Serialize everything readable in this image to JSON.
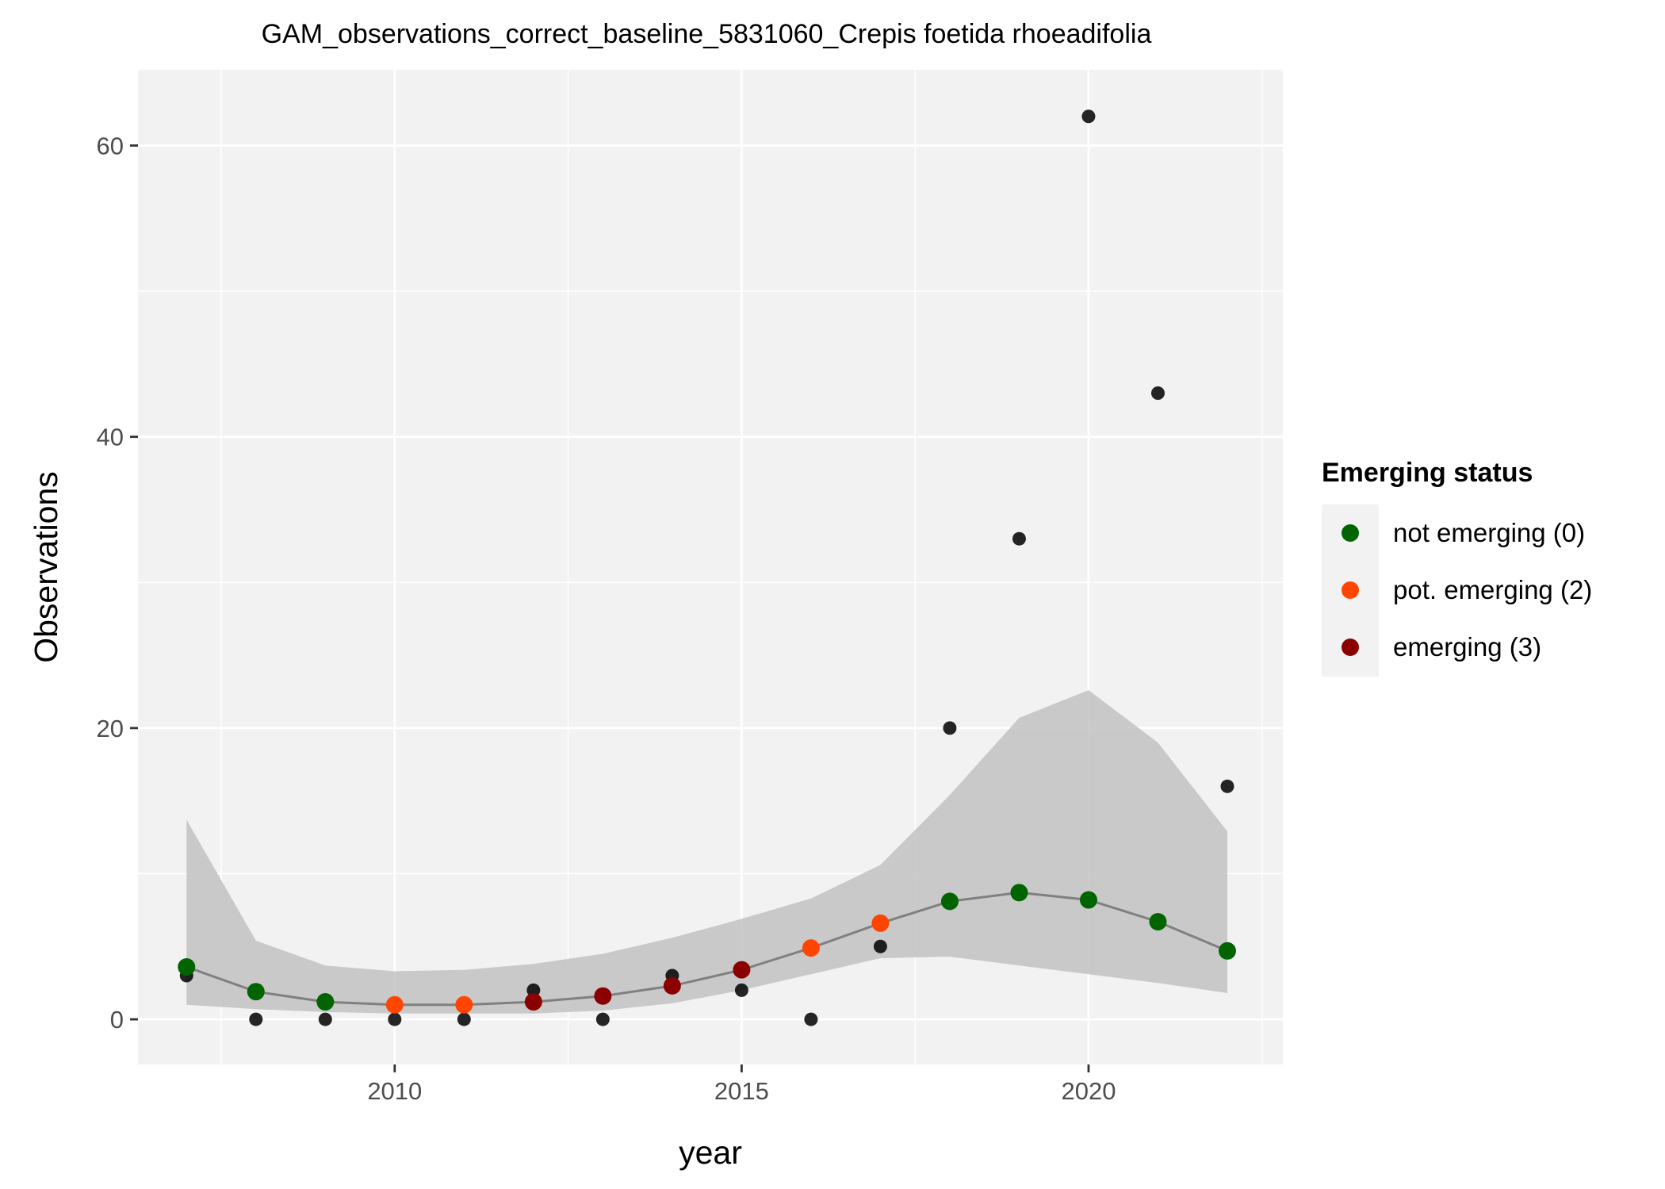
{
  "chart_data": {
    "type": "scatter",
    "title": "GAM_observations_correct_baseline_5831060_Crepis foetida rhoeadifolia",
    "xlabel": "year",
    "ylabel": "Observations",
    "xlim": [
      2006.3,
      2022.8
    ],
    "ylim": [
      -3.1,
      65.2
    ],
    "x_ticks": [
      2010,
      2015,
      2020
    ],
    "y_ticks": [
      0,
      20,
      40,
      60
    ],
    "x_tick_labels": [
      "2010",
      "2015",
      "2020"
    ],
    "y_tick_labels": [
      "0",
      "20",
      "40",
      "60"
    ],
    "grid": true,
    "legend_position": "right",
    "legend": {
      "title": "Emerging status",
      "entries": [
        {
          "label": "not emerging (0)",
          "color": "#006400"
        },
        {
          "label": "pot. emerging (2)",
          "color": "#FF4500"
        },
        {
          "label": "emerging (3)",
          "color": "#8B0000"
        }
      ]
    },
    "colors": {
      "panel": "#f2f2f2",
      "grid": "#ffffff",
      "ribbon": "#bebebe",
      "fit_line": "#808080",
      "observed": "#000000"
    },
    "observed": {
      "x": [
        2007,
        2008,
        2009,
        2010,
        2011,
        2012,
        2013,
        2014,
        2015,
        2016,
        2017,
        2018,
        2019,
        2020,
        2021,
        2022
      ],
      "y": [
        3,
        0,
        0,
        0,
        0,
        2,
        0,
        3,
        2,
        0,
        5,
        20,
        33,
        62,
        43,
        16
      ]
    },
    "fitted": {
      "x": [
        2007,
        2008,
        2009,
        2010,
        2011,
        2012,
        2013,
        2014,
        2015,
        2016,
        2017,
        2018,
        2019,
        2020,
        2021,
        2022
      ],
      "y": [
        3.6,
        1.9,
        1.2,
        1.0,
        1.0,
        1.2,
        1.6,
        2.3,
        3.4,
        4.9,
        6.6,
        8.1,
        8.7,
        8.2,
        6.7,
        4.7
      ],
      "lower": [
        1.0,
        0.7,
        0.5,
        0.4,
        0.4,
        0.4,
        0.6,
        1.1,
        2.0,
        3.1,
        4.2,
        4.3,
        3.7,
        3.1,
        2.5,
        1.8
      ],
      "upper": [
        13.7,
        5.4,
        3.7,
        3.3,
        3.4,
        3.8,
        4.5,
        5.6,
        6.9,
        8.3,
        10.6,
        15.4,
        20.7,
        22.6,
        19.0,
        12.9
      ],
      "status": [
        "not emerging (0)",
        "not emerging (0)",
        "not emerging (0)",
        "pot. emerging (2)",
        "pot. emerging (2)",
        "emerging (3)",
        "emerging (3)",
        "emerging (3)",
        "emerging (3)",
        "pot. emerging (2)",
        "pot. emerging (2)",
        "not emerging (0)",
        "not emerging (0)",
        "not emerging (0)",
        "not emerging (0)",
        "not emerging (0)"
      ]
    }
  }
}
